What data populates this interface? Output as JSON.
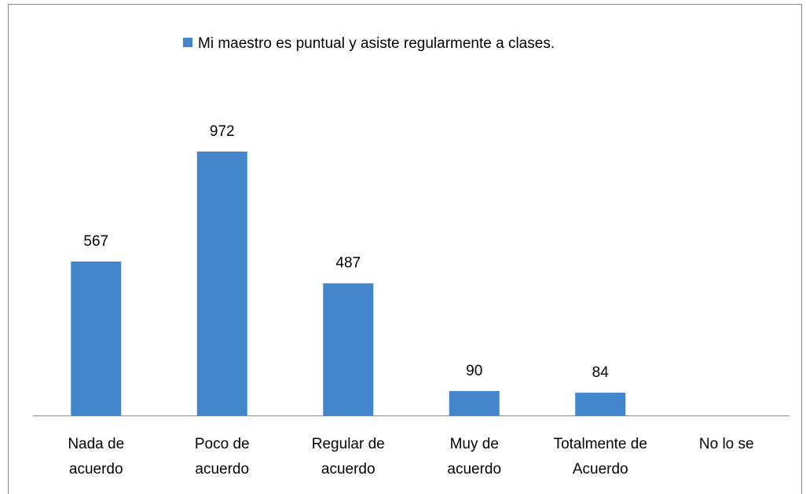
{
  "chart_data": {
    "type": "bar",
    "legend": "Mi maestro es puntual y asiste regularmente a clases.",
    "categories": [
      "Nada de\nacuerdo",
      "Poco de\nacuerdo",
      "Regular de\nacuerdo",
      "Muy de\nacuerdo",
      "Totalmente de\nAcuerdo",
      "No lo se"
    ],
    "values": [
      567,
      972,
      487,
      90,
      84,
      null
    ],
    "color": "#4486cc",
    "ylim": [
      0,
      1200
    ]
  }
}
